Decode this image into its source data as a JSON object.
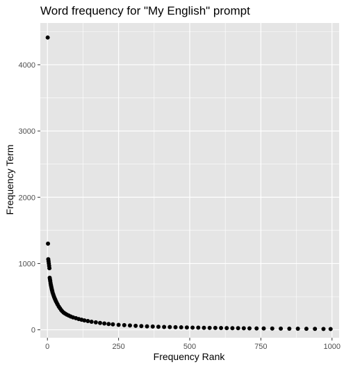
{
  "chart_data": {
    "type": "scatter",
    "title": "Word frequency for \"My English\" prompt",
    "xlabel": "Frequency Rank",
    "ylabel": "Frequency Term",
    "xlim": [
      -25,
      1025
    ],
    "ylim": [
      -120,
      4630
    ],
    "x_ticks": [
      0,
      250,
      500,
      750,
      1000
    ],
    "y_ticks": [
      0,
      1000,
      2000,
      3000,
      4000
    ],
    "grid": true,
    "legend": "none",
    "colors": {
      "panel": "#e5e5e5",
      "grid": "#ffffff",
      "point": "#000000",
      "tick": "#4d4d4d"
    },
    "points": [
      [
        1,
        4410
      ],
      [
        2,
        1300
      ],
      [
        3,
        1065
      ],
      [
        4,
        1035
      ],
      [
        5,
        1000
      ],
      [
        6,
        965
      ],
      [
        7,
        930
      ],
      [
        8,
        785
      ],
      [
        9,
        760
      ],
      [
        10,
        735
      ],
      [
        11,
        705
      ],
      [
        12,
        680
      ],
      [
        13,
        660
      ],
      [
        14,
        640
      ],
      [
        15,
        620
      ],
      [
        16,
        600
      ],
      [
        17,
        585
      ],
      [
        18,
        565
      ],
      [
        20,
        540
      ],
      [
        22,
        515
      ],
      [
        24,
        490
      ],
      [
        26,
        470
      ],
      [
        28,
        450
      ],
      [
        30,
        430
      ],
      [
        33,
        405
      ],
      [
        36,
        380
      ],
      [
        40,
        350
      ],
      [
        44,
        325
      ],
      [
        48,
        300
      ],
      [
        52,
        280
      ],
      [
        57,
        260
      ],
      [
        62,
        245
      ],
      [
        68,
        230
      ],
      [
        75,
        215
      ],
      [
        82,
        200
      ],
      [
        90,
        188
      ],
      [
        100,
        175
      ],
      [
        110,
        163
      ],
      [
        120,
        152
      ],
      [
        130,
        142
      ],
      [
        142,
        132
      ],
      [
        155,
        122
      ],
      [
        170,
        112
      ],
      [
        185,
        103
      ],
      [
        200,
        95
      ],
      [
        215,
        88
      ],
      [
        230,
        82
      ],
      [
        250,
        75
      ],
      [
        270,
        70
      ],
      [
        290,
        65
      ],
      [
        310,
        60
      ],
      [
        330,
        56
      ],
      [
        350,
        52
      ],
      [
        370,
        49
      ],
      [
        390,
        46
      ],
      [
        410,
        43
      ],
      [
        430,
        41
      ],
      [
        450,
        39
      ],
      [
        470,
        37
      ],
      [
        490,
        35
      ],
      [
        510,
        33
      ],
      [
        530,
        32
      ],
      [
        550,
        30
      ],
      [
        570,
        29
      ],
      [
        590,
        28
      ],
      [
        610,
        27
      ],
      [
        630,
        26
      ],
      [
        650,
        25
      ],
      [
        670,
        24
      ],
      [
        690,
        23
      ],
      [
        710,
        22
      ],
      [
        735,
        21
      ],
      [
        760,
        20
      ],
      [
        790,
        19
      ],
      [
        820,
        18
      ],
      [
        850,
        17
      ],
      [
        880,
        16
      ],
      [
        910,
        15
      ],
      [
        940,
        14
      ],
      [
        970,
        13
      ],
      [
        995,
        12
      ]
    ]
  }
}
